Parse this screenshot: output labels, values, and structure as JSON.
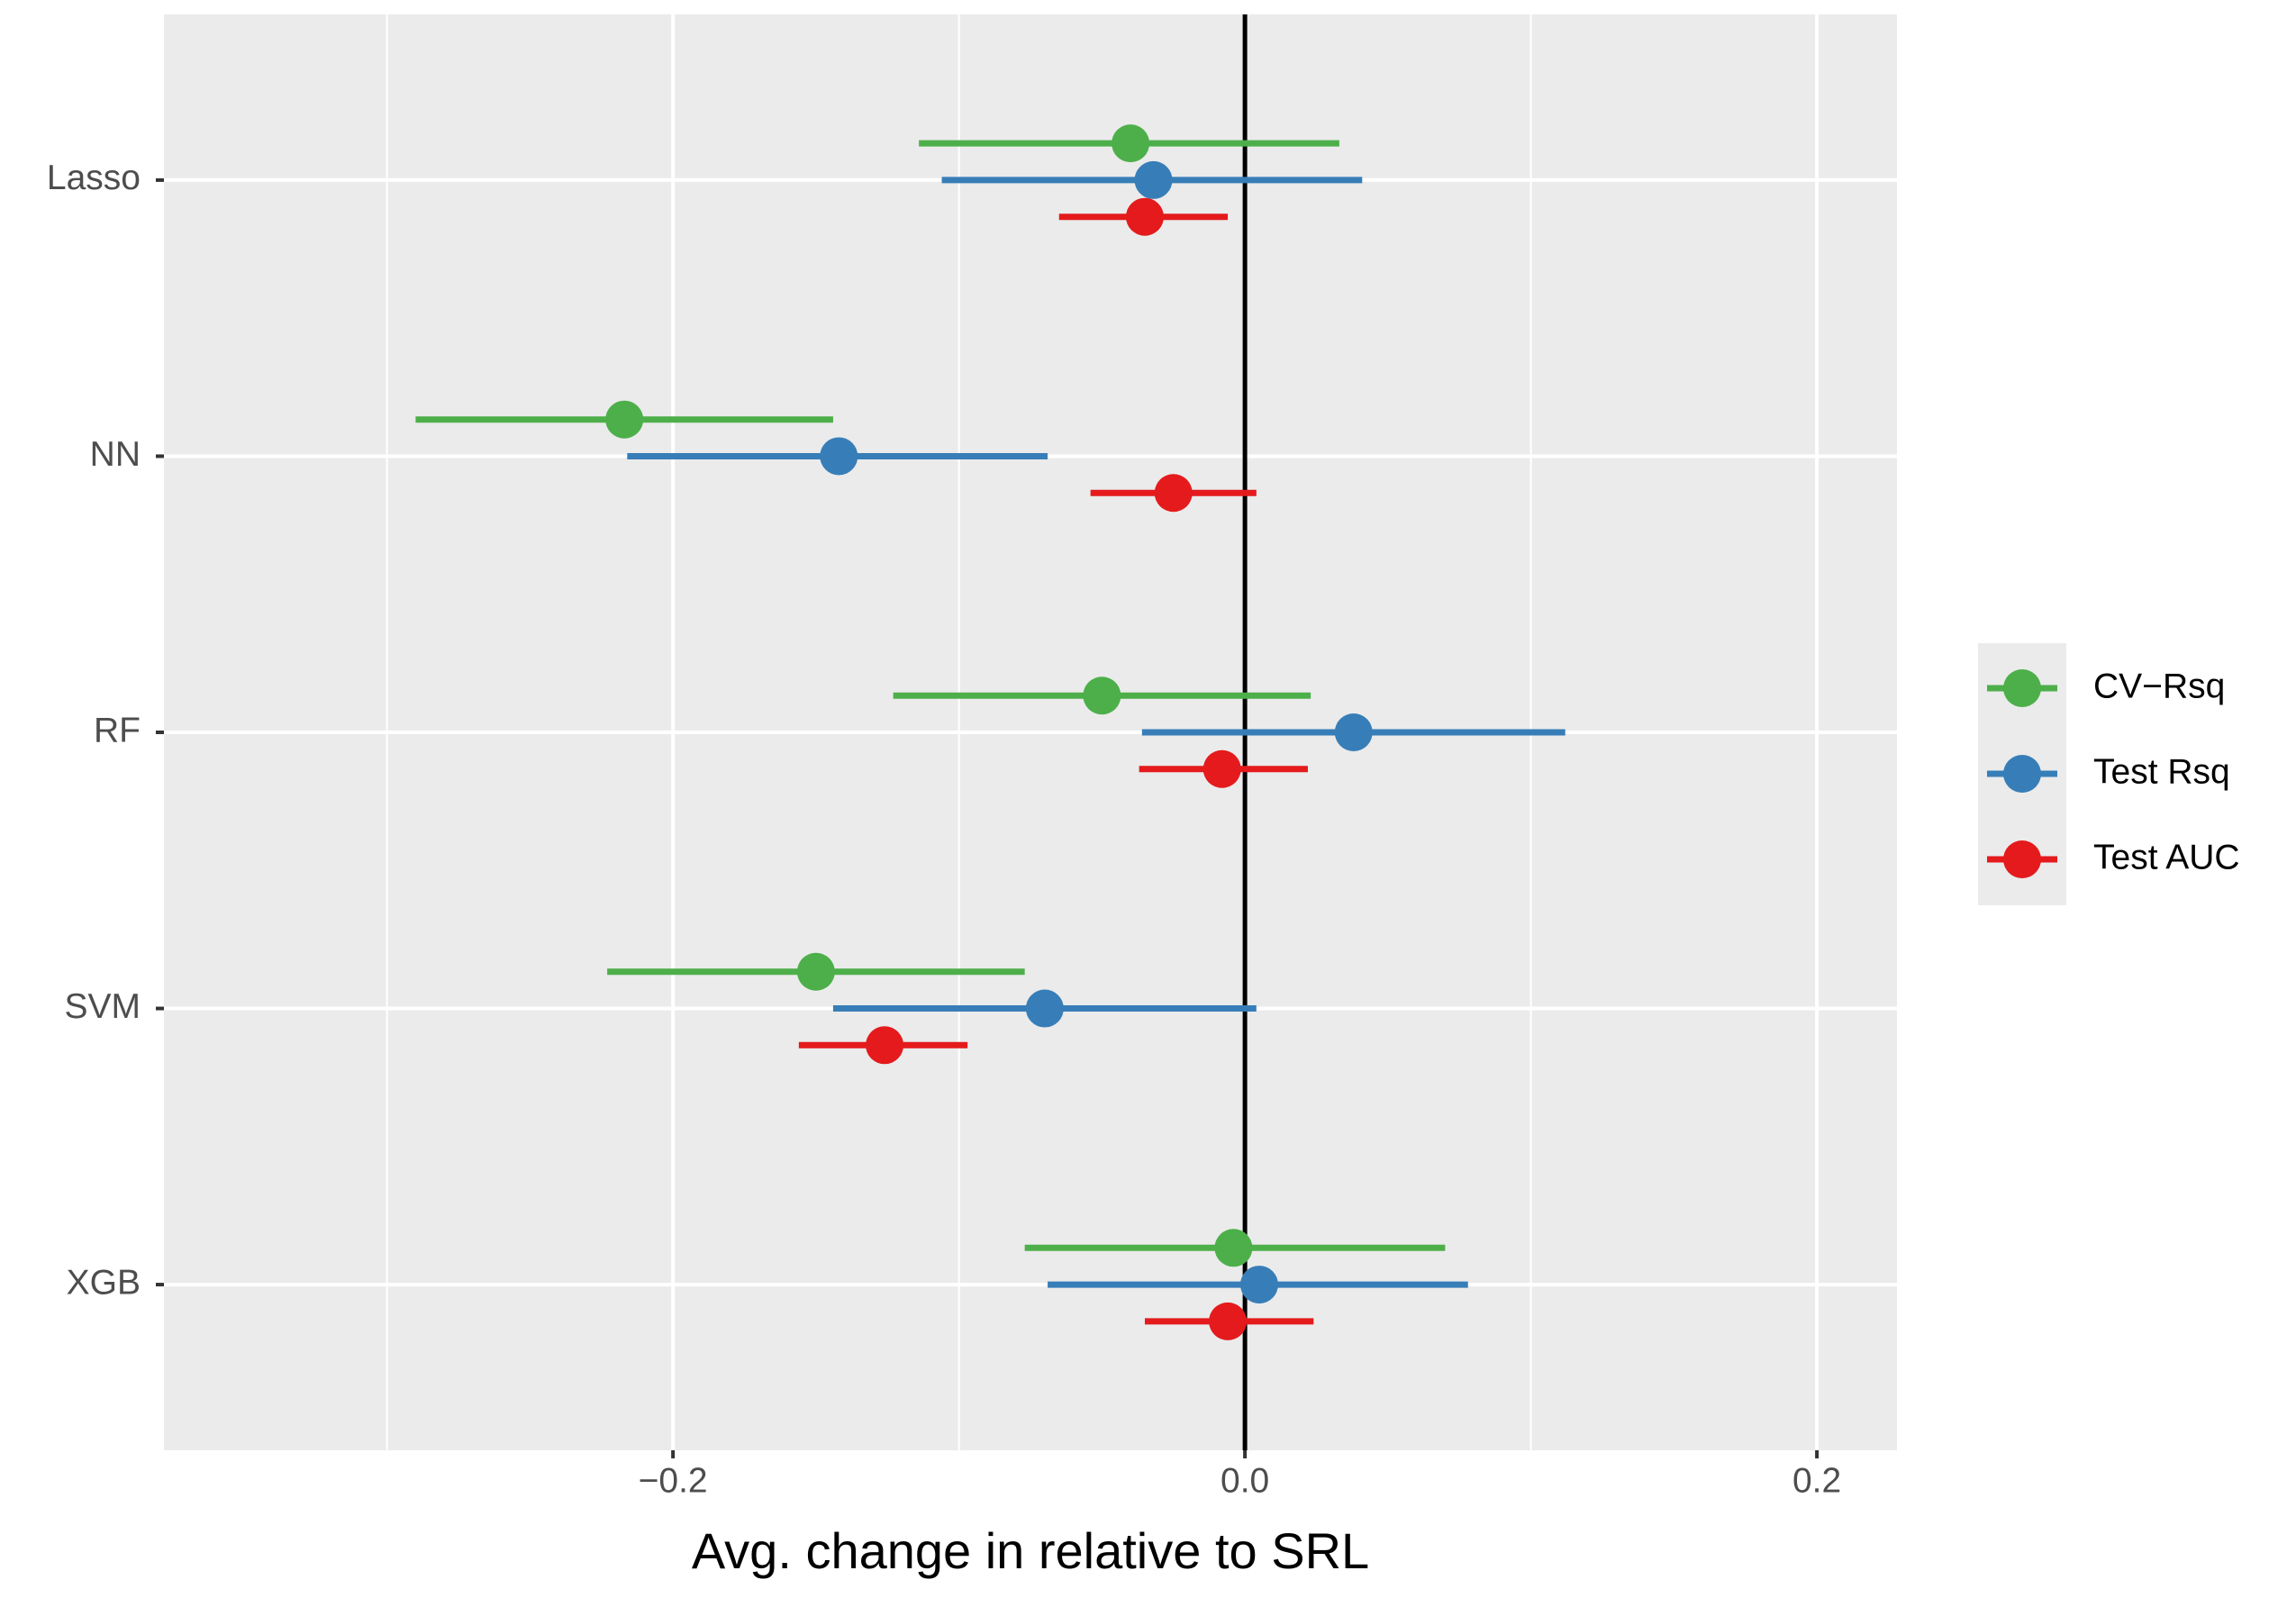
{
  "chart_data": {
    "type": "dot-interval",
    "xlabel": "Avg. change in relative to SRL",
    "categories": [
      "Lasso",
      "NN",
      "RF",
      "SVM",
      "XGB"
    ],
    "series": [
      {
        "name": "CV−Rsq",
        "color": "#4daf4a",
        "values": [
          -0.04,
          -0.217,
          -0.05,
          -0.15,
          -0.004
        ],
        "low": [
          -0.114,
          -0.29,
          -0.123,
          -0.223,
          -0.077
        ],
        "high": [
          0.033,
          -0.144,
          0.023,
          -0.077,
          0.07
        ]
      },
      {
        "name": "Test Rsq",
        "color": "#377eb8",
        "values": [
          -0.032,
          -0.142,
          0.038,
          -0.07,
          0.005
        ],
        "low": [
          -0.106,
          -0.216,
          -0.036,
          -0.144,
          -0.069
        ],
        "high": [
          0.041,
          -0.069,
          0.112,
          0.004,
          0.078
        ]
      },
      {
        "name": "Test AUC",
        "color": "#e41a1c",
        "values": [
          -0.035,
          -0.025,
          -0.008,
          -0.126,
          -0.006
        ],
        "low": [
          -0.065,
          -0.054,
          -0.037,
          -0.156,
          -0.035
        ],
        "high": [
          -0.006,
          0.004,
          0.022,
          -0.097,
          0.024
        ]
      }
    ],
    "xlim": [
      -0.378,
      0.228
    ],
    "xticks": [
      {
        "value": -0.2,
        "label": "−0.2"
      },
      {
        "value": 0,
        "label": "0.0"
      },
      0.2
    ],
    "xminor": [
      -0.3,
      -0.1,
      0.1
    ],
    "vline": 0,
    "grid": true,
    "legend": "right"
  }
}
